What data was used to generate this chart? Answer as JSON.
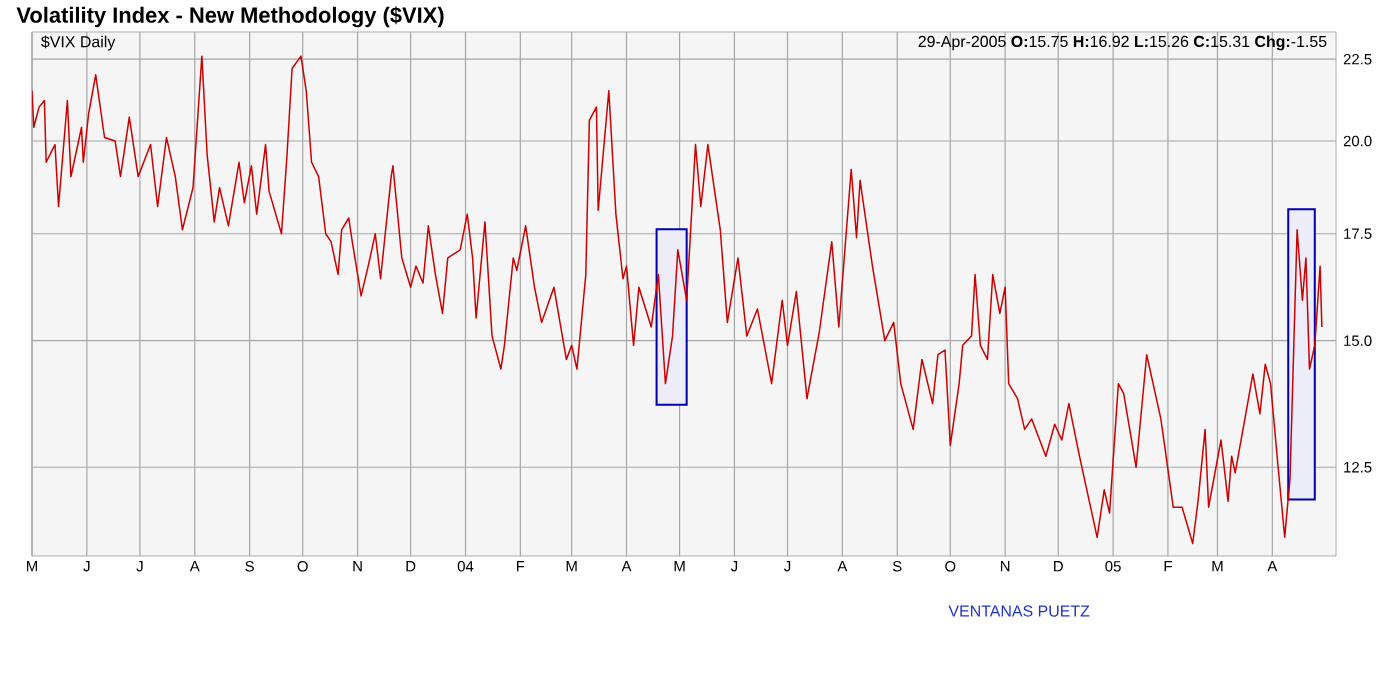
{
  "chart_data": {
    "type": "line",
    "title": "Volatility Index - New Methodology ($VIX)",
    "annotations": [
      "$VIX Daily",
      "29-Apr-2005 **O:**15.75 **H:**16.92 **L:**15.26 **C:**15.31 **Chg:**-1.55",
      "VENTANAS PUETZ"
    ],
    "series": [
      {
        "color": "#cc0000",
        "x": [
          "2003-05-01",
          "2003-05-02",
          "2003-05-05",
          "2003-05-08",
          "2003-05-09",
          "2003-05-14",
          "2003-05-16",
          "2003-05-21",
          "2003-05-23",
          "2003-05-29",
          "2003-05-30",
          "2003-06-02",
          "2003-06-06",
          "2003-06-11",
          "2003-06-17",
          "2003-06-20",
          "2003-06-25",
          "2003-06-30",
          "2003-07-07",
          "2003-07-11",
          "2003-07-16",
          "2003-07-21",
          "2003-07-25",
          "2003-07-31",
          "2003-08-05",
          "2003-08-08",
          "2003-08-12",
          "2003-08-15",
          "2003-08-20",
          "2003-08-26",
          "2003-08-29",
          "2003-09-02",
          "2003-09-05",
          "2003-09-10",
          "2003-09-12",
          "2003-09-19",
          "2003-09-22",
          "2003-09-25",
          "2003-09-30",
          "2003-10-03",
          "2003-10-06",
          "2003-10-10",
          "2003-10-14",
          "2003-10-17",
          "2003-10-21",
          "2003-10-23",
          "2003-10-27",
          "2003-10-29",
          "2003-11-03",
          "2003-11-07",
          "2003-11-11",
          "2003-11-14",
          "2003-11-20",
          "2003-11-21",
          "2003-11-26",
          "2003-12-01",
          "2003-12-04",
          "2003-12-08",
          "2003-12-11",
          "2003-12-15",
          "2003-12-19",
          "2003-12-22",
          "2003-12-29",
          "2004-01-02",
          "2004-01-05",
          "2004-01-07",
          "2004-01-12",
          "2004-01-16",
          "2004-01-21",
          "2004-01-23",
          "2004-01-28",
          "2004-01-30",
          "2004-02-04",
          "2004-02-09",
          "2004-02-13",
          "2004-02-20",
          "2004-02-27",
          "2004-03-01",
          "2004-03-04",
          "2004-03-09",
          "2004-03-11",
          "2004-03-15",
          "2004-03-16",
          "2004-03-22",
          "2004-03-26",
          "2004-03-30",
          "2004-04-01",
          "2004-04-05",
          "2004-04-08",
          "2004-04-15",
          "2004-04-19",
          "2004-04-23",
          "2004-04-27",
          "2004-04-30",
          "2004-05-05",
          "2004-05-10",
          "2004-05-13",
          "2004-05-17",
          "2004-05-24",
          "2004-05-28",
          "2004-06-03",
          "2004-06-08",
          "2004-06-14",
          "2004-06-22",
          "2004-06-28",
          "2004-07-01",
          "2004-07-06",
          "2004-07-12",
          "2004-07-19",
          "2004-07-26",
          "2004-07-30",
          "2004-08-06",
          "2004-08-09",
          "2004-08-11",
          "2004-08-18",
          "2004-08-25",
          "2004-08-30",
          "2004-09-03",
          "2004-09-10",
          "2004-09-15",
          "2004-09-21",
          "2004-09-24",
          "2004-09-28",
          "2004-10-01",
          "2004-10-06",
          "2004-10-08",
          "2004-10-13",
          "2004-10-15",
          "2004-10-18",
          "2004-10-22",
          "2004-10-25",
          "2004-10-29",
          "2004-11-01",
          "2004-11-03",
          "2004-11-08",
          "2004-11-12",
          "2004-11-16",
          "2004-11-24",
          "2004-11-29",
          "2004-12-03",
          "2004-12-07",
          "2004-12-13",
          "2004-12-23",
          "2004-12-27",
          "2004-12-30",
          "2005-01-04",
          "2005-01-07",
          "2005-01-14",
          "2005-01-20",
          "2005-01-28",
          "2005-02-04",
          "2005-02-09",
          "2005-02-15",
          "2005-02-18",
          "2005-02-22",
          "2005-02-24",
          "2005-03-03",
          "2005-03-07",
          "2005-03-09",
          "2005-03-11",
          "2005-03-17",
          "2005-03-21",
          "2005-03-25",
          "2005-03-28",
          "2005-03-31",
          "2005-04-04",
          "2005-04-08",
          "2005-04-11",
          "2005-04-15",
          "2005-04-18",
          "2005-04-20",
          "2005-04-22",
          "2005-04-25",
          "2005-04-28",
          "2005-04-29"
        ],
        "values": [
          21.5,
          20.4,
          21.0,
          21.2,
          19.4,
          19.9,
          18.2,
          21.2,
          19.0,
          20.4,
          19.4,
          20.8,
          22.0,
          20.1,
          20.0,
          19.0,
          20.7,
          19.0,
          19.9,
          18.2,
          20.1,
          19.0,
          17.6,
          18.7,
          22.6,
          19.6,
          17.8,
          18.7,
          17.7,
          19.4,
          18.3,
          19.3,
          18.0,
          19.9,
          18.6,
          17.5,
          19.5,
          22.2,
          22.6,
          21.5,
          19.4,
          19.0,
          17.5,
          17.3,
          16.5,
          17.6,
          17.9,
          17.3,
          16.0,
          16.7,
          17.5,
          16.4,
          19.0,
          19.3,
          16.9,
          16.2,
          16.7,
          16.3,
          17.7,
          16.5,
          15.6,
          16.9,
          17.1,
          18.0,
          16.9,
          15.5,
          17.8,
          15.1,
          14.4,
          14.9,
          16.9,
          16.6,
          17.7,
          16.2,
          15.4,
          16.2,
          14.6,
          14.9,
          14.4,
          16.5,
          20.6,
          21.0,
          18.1,
          21.5,
          18.0,
          16.4,
          16.7,
          14.9,
          16.2,
          15.3,
          16.5,
          14.1,
          15.1,
          17.1,
          15.9,
          19.9,
          18.2,
          19.9,
          17.6,
          15.4,
          16.9,
          15.1,
          15.7,
          14.1,
          15.9,
          14.9,
          16.1,
          13.8,
          15.2,
          17.3,
          15.3,
          19.2,
          17.4,
          18.9,
          16.7,
          15.0,
          15.4,
          14.1,
          13.2,
          14.6,
          13.7,
          14.7,
          14.8,
          12.9,
          14.1,
          14.9,
          15.1,
          16.5,
          14.9,
          14.6,
          16.5,
          15.6,
          16.2,
          14.1,
          13.8,
          13.2,
          13.4,
          12.7,
          13.3,
          13.0,
          13.7,
          12.7,
          11.3,
          12.1,
          11.7,
          14.1,
          13.9,
          12.5,
          14.7,
          13.4,
          11.8,
          11.8,
          11.2,
          11.9,
          13.2,
          11.8,
          13.0,
          11.9,
          12.7,
          12.4,
          13.5,
          14.3,
          13.5,
          14.5,
          14.1,
          12.6,
          11.3,
          12.3,
          17.6,
          15.9,
          16.9,
          14.4,
          14.9,
          16.7,
          15.3
        ]
      }
    ],
    "xlim": [
      "2003-05-01",
      "2005-05-07"
    ],
    "xticks": [
      {
        "value": "2003-05-01",
        "label": "M"
      },
      {
        "value": "2003-06-01",
        "label": "J"
      },
      {
        "value": "2003-07-01",
        "label": "J"
      },
      {
        "value": "2003-08-01",
        "label": "A"
      },
      {
        "value": "2003-09-01",
        "label": "S"
      },
      {
        "value": "2003-10-01",
        "label": "O"
      },
      {
        "value": "2003-11-01",
        "label": "N"
      },
      {
        "value": "2003-12-01",
        "label": "D"
      },
      {
        "value": "2004-01-01",
        "label": "04"
      },
      {
        "value": "2004-02-01",
        "label": "F"
      },
      {
        "value": "2004-03-01",
        "label": "M"
      },
      {
        "value": "2004-04-01",
        "label": "A"
      },
      {
        "value": "2004-05-01",
        "label": "M"
      },
      {
        "value": "2004-06-01",
        "label": "J"
      },
      {
        "value": "2004-07-01",
        "label": "J"
      },
      {
        "value": "2004-08-01",
        "label": "A"
      },
      {
        "value": "2004-09-01",
        "label": "S"
      },
      {
        "value": "2004-10-01",
        "label": "O"
      },
      {
        "value": "2004-11-01",
        "label": "N"
      },
      {
        "value": "2004-12-01",
        "label": "D"
      },
      {
        "value": "2005-01-01",
        "label": "05"
      },
      {
        "value": "2005-02-01",
        "label": "F"
      },
      {
        "value": "2005-03-01",
        "label": "M"
      },
      {
        "value": "2005-04-01",
        "label": "A"
      }
    ],
    "ylim": [
      11.0,
      23.4
    ],
    "yticks": [
      {
        "value": 12.5,
        "label": "12.5"
      },
      {
        "value": 15,
        "label": "15.0"
      },
      {
        "value": 17.5,
        "label": "17.5"
      },
      {
        "value": 20,
        "label": "20.0"
      },
      {
        "value": 22.5,
        "label": "22.5"
      }
    ],
    "log": "y",
    "grid": true,
    "bands": [
      {
        "axis": "x",
        "from": "2004-04-18",
        "to": "2004-05-05",
        "color": "#0000aa"
      },
      {
        "axis": "x",
        "from": "2005-04-10",
        "to": "2005-04-25",
        "color": "#0000aa"
      }
    ]
  }
}
